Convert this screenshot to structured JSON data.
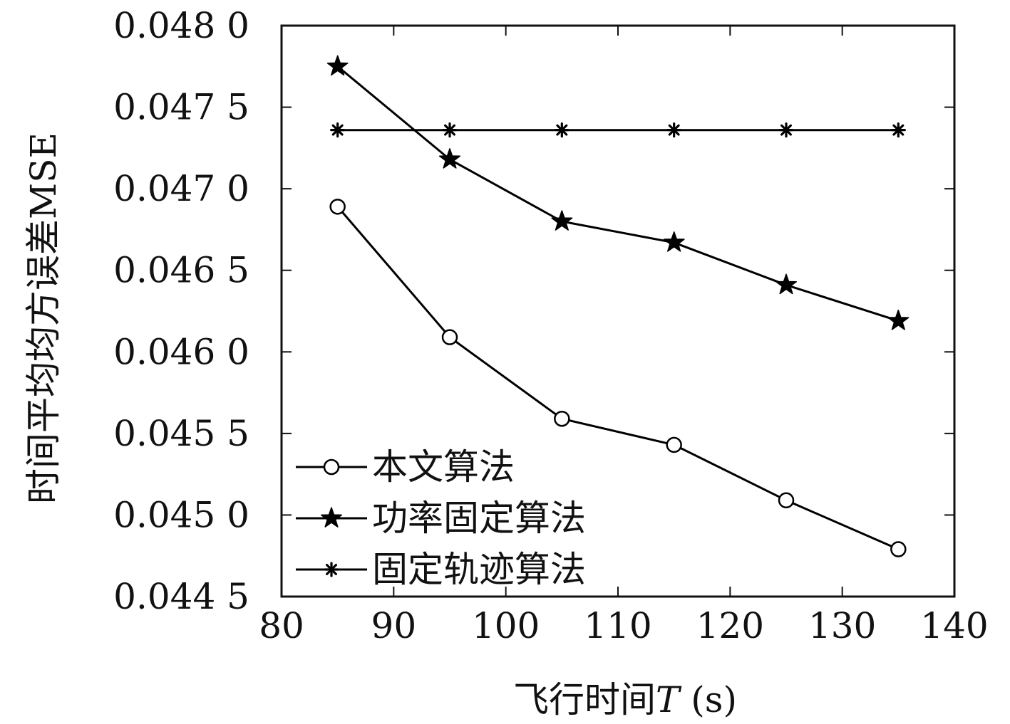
{
  "chart_data": {
    "type": "line",
    "xlabel_prefix": "飞行时间",
    "xlabel_var": "T",
    "xlabel_unit": " (s)",
    "ylabel": "时间平均均方误差MSE",
    "xlim": [
      80,
      140
    ],
    "ylim": [
      0.0445,
      0.048
    ],
    "x_ticks": [
      80,
      90,
      100,
      110,
      120,
      130,
      140
    ],
    "x_tick_labels": [
      "80",
      "90",
      "100",
      "110",
      "120",
      "130",
      "140"
    ],
    "y_ticks": [
      0.0445,
      0.045,
      0.0455,
      0.046,
      0.0465,
      0.047,
      0.0475,
      0.048
    ],
    "y_tick_labels": [
      "0.044 5",
      "0.045 0",
      "0.045 5",
      "0.046 0",
      "0.046 5",
      "0.047 0",
      "0.047 5",
      "0.048 0"
    ],
    "grid": false,
    "legend_position": "bottom-left",
    "x": [
      85,
      95,
      105,
      115,
      125,
      135
    ],
    "series": [
      {
        "name": "本文算法",
        "marker": "circle",
        "values": [
          0.04689,
          0.04609,
          0.04559,
          0.04543,
          0.04509,
          0.04479
        ]
      },
      {
        "name": "功率固定算法",
        "marker": "star",
        "values": [
          0.04775,
          0.04718,
          0.0468,
          0.04667,
          0.04641,
          0.04619
        ]
      },
      {
        "name": "固定轨迹算法",
        "marker": "asterisk",
        "values": [
          0.04736,
          0.04736,
          0.04736,
          0.04736,
          0.04736,
          0.04736
        ]
      }
    ],
    "colors": {
      "line": "#000000",
      "axis": "#111111"
    }
  }
}
